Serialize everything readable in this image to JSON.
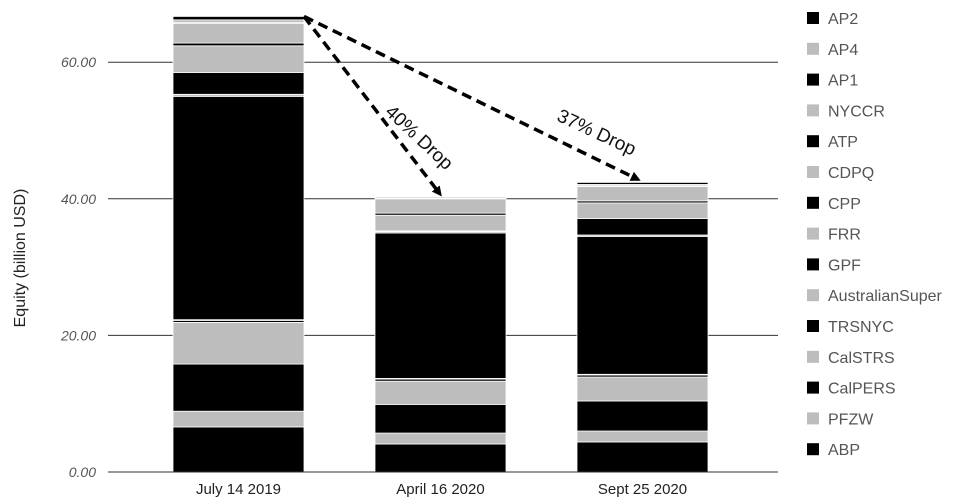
{
  "chart_data": {
    "type": "bar",
    "stacked": true,
    "title": "",
    "xlabel": "",
    "ylabel": "Equity (billion USD)",
    "ylim": [
      0,
      66.8
    ],
    "yticks": [
      "0.00",
      "20.00",
      "40.00",
      "60.00"
    ],
    "ytick_values": [
      0,
      20,
      40,
      60
    ],
    "grid": "horizontal",
    "legend_position": "right",
    "categories": [
      "July 14 2019",
      "April 16 2020",
      "Sept 25 2020"
    ],
    "series": [
      {
        "name": "ABP",
        "color": "#000000",
        "values": [
          6.6,
          4.1,
          4.4
        ]
      },
      {
        "name": "PFZW",
        "color": "#bdbdbd",
        "values": [
          2.3,
          1.6,
          1.6
        ]
      },
      {
        "name": "CalPERS",
        "color": "#000000",
        "values": [
          6.9,
          4.2,
          4.4
        ]
      },
      {
        "name": "CalSTRS",
        "color": "#bdbdbd",
        "values": [
          6.1,
          3.4,
          3.5
        ]
      },
      {
        "name": "TRSNYC",
        "color": "#000000",
        "values": [
          0.3,
          0.3,
          0.3
        ]
      },
      {
        "name": "AustralianSuper",
        "color": "#bdbdbd",
        "values": [
          0.1,
          0.1,
          0.1
        ]
      },
      {
        "name": "GPF",
        "color": "#000000",
        "values": [
          32.7,
          21.3,
          20.2
        ]
      },
      {
        "name": "FRR",
        "color": "#bdbdbd",
        "values": [
          0.3,
          0.2,
          0.2
        ]
      },
      {
        "name": "CPP",
        "color": "#000000",
        "values": [
          3.2,
          0.1,
          2.4
        ]
      },
      {
        "name": "CDPQ",
        "color": "#bdbdbd",
        "values": [
          3.9,
          2.3,
          2.3
        ]
      },
      {
        "name": "ATP",
        "color": "#000000",
        "values": [
          0.4,
          0.3,
          0.3
        ]
      },
      {
        "name": "NYCCR",
        "color": "#bdbdbd",
        "values": [
          2.9,
          2.1,
          2.1
        ]
      },
      {
        "name": "AP1",
        "color": "#000000",
        "values": [
          0.1,
          0.1,
          0.1
        ]
      },
      {
        "name": "AP4",
        "color": "#bdbdbd",
        "values": [
          0.4,
          0.2,
          0.2
        ]
      },
      {
        "name": "AP2",
        "color": "#000000",
        "values": [
          0.5,
          0.1,
          0.3
        ]
      }
    ],
    "legend_order": [
      "AP2",
      "AP4",
      "AP1",
      "NYCCR",
      "ATP",
      "CDPQ",
      "CPP",
      "FRR",
      "GPF",
      "AustralianSuper",
      "TRSNYC",
      "CalSTRS",
      "CalPERS",
      "PFZW",
      "ABP"
    ],
    "annotations": [
      {
        "text": "40% Drop",
        "from_category": "July 14 2019",
        "to_category": "April 16 2020"
      },
      {
        "text": "37% Drop",
        "from_category": "July 14 2019",
        "to_category": "Sept 25 2020"
      }
    ]
  }
}
